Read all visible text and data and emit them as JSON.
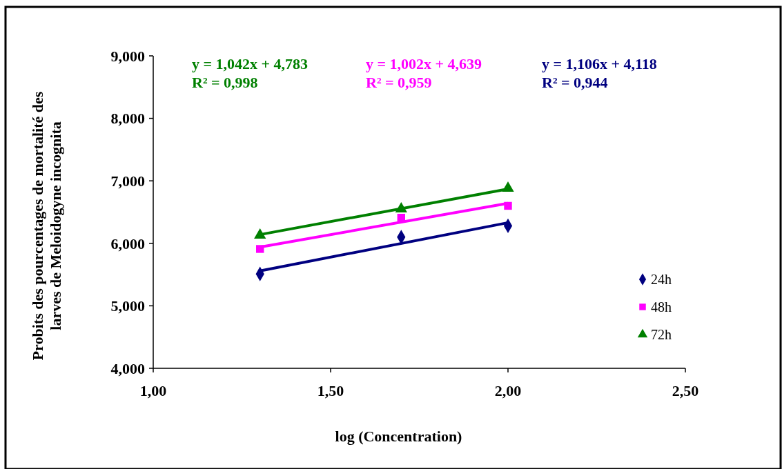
{
  "chart_data": {
    "type": "scatter",
    "xlabel": "log (Concentration)",
    "ylabel": "Probits des pourcentages de mortalité des\nlarves de Meloidogyne incognita",
    "xlim": [
      1.0,
      2.5
    ],
    "xticks": [
      {
        "value": 1.0,
        "label": "1,00"
      },
      {
        "value": 1.5,
        "label": "1,50"
      },
      {
        "value": 2.0,
        "label": "2,00"
      },
      {
        "value": 2.5,
        "label": "2,50"
      }
    ],
    "ylim": [
      4,
      9
    ],
    "yticks": [
      {
        "value": 4,
        "label": "4,000"
      },
      {
        "value": 5,
        "label": "5,000"
      },
      {
        "value": 6,
        "label": "6,000"
      },
      {
        "value": 7,
        "label": "7,000"
      },
      {
        "value": 8,
        "label": "8,000"
      },
      {
        "value": 9,
        "label": "9,000"
      }
    ],
    "grid": false,
    "legend": "right",
    "series": [
      {
        "name": "24h",
        "color": "#000080",
        "marker": "diamond",
        "x": [
          1.301,
          1.699,
          2.0
        ],
        "values": [
          5.51,
          6.1,
          6.28
        ]
      },
      {
        "name": "48h",
        "color": "#ff00ff",
        "marker": "square",
        "x": [
          1.301,
          1.699,
          2.0
        ],
        "values": [
          5.91,
          6.41,
          6.6
        ]
      },
      {
        "name": "72h",
        "color": "#008000",
        "marker": "triangle",
        "x": [
          1.301,
          1.699,
          2.0
        ],
        "values": [
          6.13,
          6.55,
          6.88
        ]
      },
      {
        "type": "line",
        "color": "#008000",
        "x": [
          1.301,
          2.0
        ],
        "values": [
          6.14,
          6.87
        ]
      },
      {
        "type": "line",
        "color": "#ff00ff",
        "x": [
          1.301,
          2.0
        ],
        "values": [
          5.94,
          6.64
        ]
      },
      {
        "type": "line",
        "color": "#000080",
        "x": [
          1.301,
          2.0
        ],
        "values": [
          5.56,
          6.33
        ]
      }
    ],
    "annotations": [
      "y = 1,042x + 4,783\nR² = 0,998",
      "y = 1,002x + 4,639\nR² = 0,959",
      "y = 1,106x + 4,118\nR² = 0,944"
    ]
  }
}
